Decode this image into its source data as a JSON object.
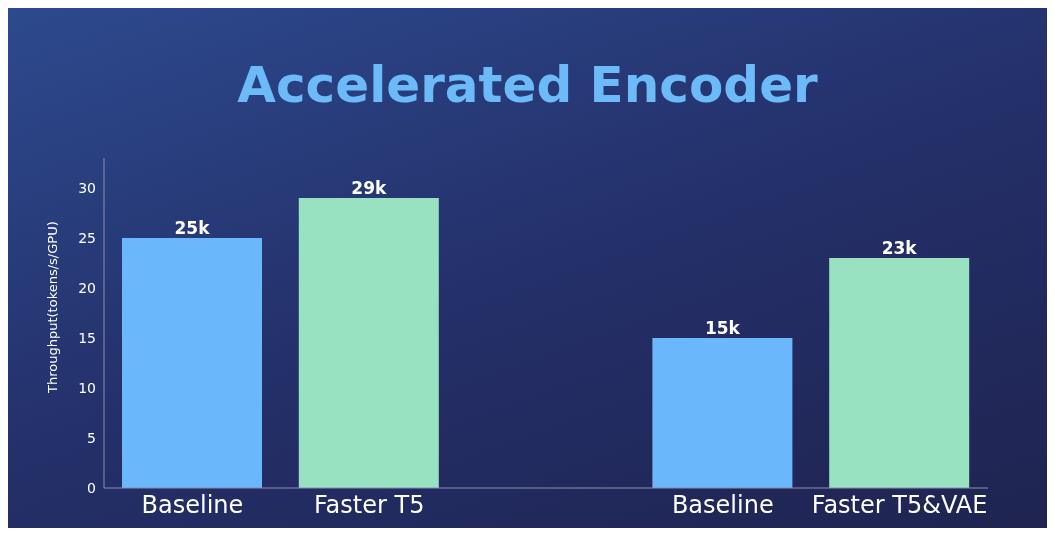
{
  "chart_data": {
    "type": "bar",
    "title": "Accelerated Encoder",
    "ylabel": "Throughput(tokens/s/GPU)",
    "categories": [
      "Baseline",
      "Faster T5",
      null,
      "Baseline",
      "Faster T5&VAE"
    ],
    "values": [
      25,
      29,
      null,
      15,
      23
    ],
    "colors": [
      "#6ab8fb",
      "#98e2c2",
      null,
      "#6ab8fb",
      "#98e2c2"
    ],
    "value_labels": [
      "25k",
      "29k",
      null,
      "15k",
      "23k"
    ],
    "ylim": [
      0,
      33
    ],
    "yticks": [
      0,
      5,
      10,
      15,
      20,
      25,
      30
    ],
    "grid": false,
    "legend": false
  }
}
